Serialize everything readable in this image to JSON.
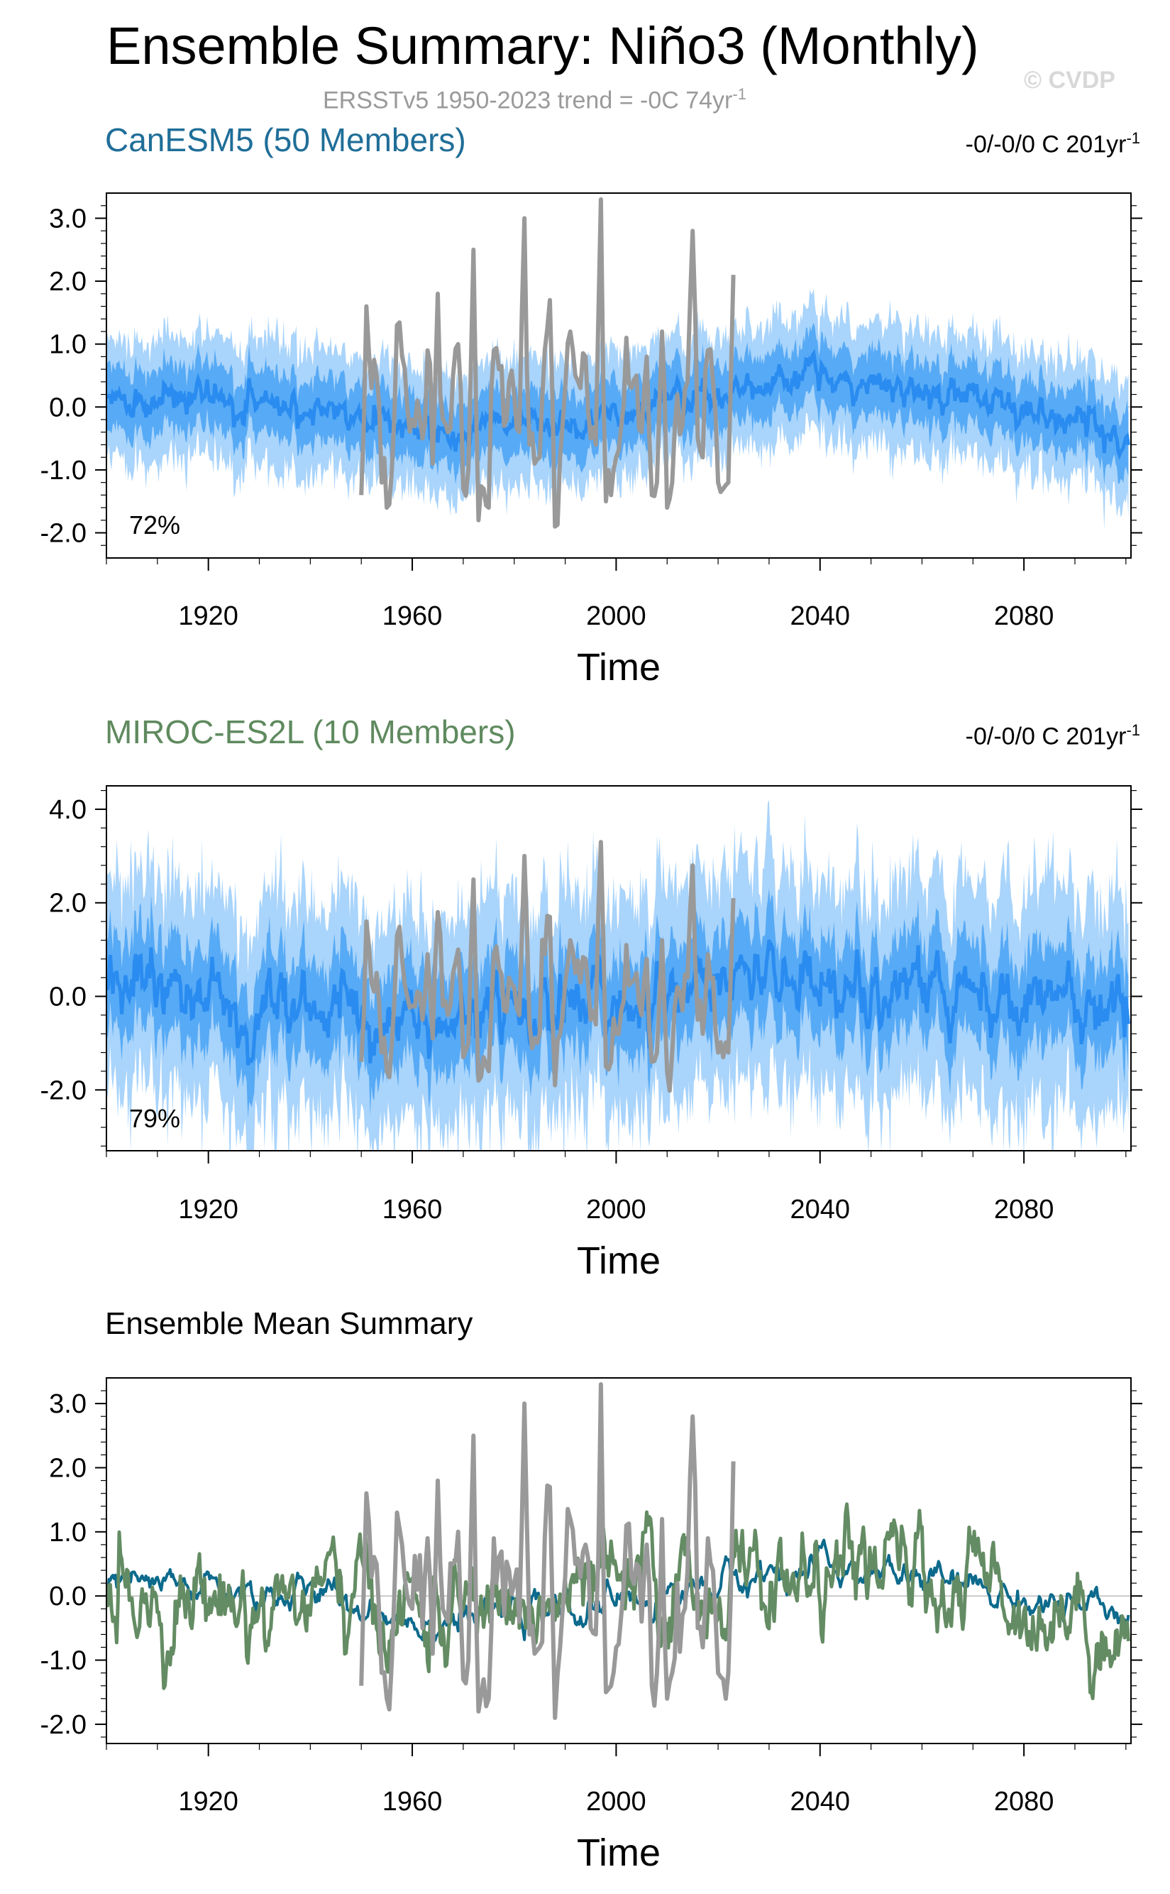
{
  "header": {
    "title": "Ensemble Summary: Niño3 (Monthly)",
    "copyright": "© CVDP",
    "obs_trend_prefix": "ERSSTv5 1950-2023 trend = -0C 74yr",
    "obs_trend_exp": "-1"
  },
  "colors": {
    "obs": "#999999",
    "canesm5_title": "#1f6e98",
    "miroc_title": "#5f8a5f",
    "envelope_outer": "#a9d4fb",
    "envelope_inner": "#57aaf5",
    "ens_mean_line": "#2a8cf0",
    "canesm5_mean": "#0c6a8c",
    "miroc_mean": "#648c64"
  },
  "chart_data": [
    {
      "type": "line",
      "panel": "canesm5",
      "title": "CanESM5 (50 Members)",
      "trend_prefix": "-0/-0/0 C 201yr",
      "trend_exp": "-1",
      "percent_label": "72%",
      "xlabel": "Time",
      "ylabel": "",
      "xlim": [
        1900,
        2101
      ],
      "ylim": [
        -2.4,
        3.4
      ],
      "x_ticks": [
        1920,
        1960,
        2000,
        2040,
        2080
      ],
      "x_tick_labels": [
        "1920",
        "1960",
        "2000",
        "2040",
        "2080"
      ],
      "y_ticks": [
        -2,
        -1,
        0,
        1,
        2,
        3
      ],
      "y_tick_labels": [
        "-2.0",
        "-1.0",
        "0.0",
        "1.0",
        "2.0",
        "3.0"
      ],
      "series": [
        {
          "name": "ensemble-mean",
          "x": [
            1900,
            1910,
            1920,
            1930,
            1940,
            1950,
            1960,
            1970,
            1980,
            1990,
            2000,
            2010,
            2020,
            2030,
            2040,
            2050,
            2060,
            2070,
            2080,
            2090,
            2100
          ],
          "values": [
            0.2,
            0.15,
            0.1,
            0.05,
            0.0,
            -0.2,
            -0.4,
            -0.45,
            -0.3,
            -0.3,
            -0.1,
            0.1,
            0.25,
            0.4,
            0.45,
            0.4,
            0.3,
            0.15,
            -0.05,
            -0.25,
            -0.5
          ]
        },
        {
          "name": "inner-spread-halfwidth",
          "x": [
            1900,
            2100
          ],
          "values": [
            0.5,
            0.5
          ]
        },
        {
          "name": "outer-spread-halfwidth",
          "x": [
            1900,
            2100
          ],
          "values": [
            0.85,
            0.85
          ]
        },
        {
          "name": "ERSSTv5",
          "x": [
            1950,
            1951,
            1952,
            1953,
            1954,
            1955,
            1956,
            1957,
            1958,
            1959,
            1960,
            1961,
            1962,
            1963,
            1964,
            1965,
            1966,
            1967,
            1968,
            1969,
            1970,
            1971,
            1972,
            1973,
            1974,
            1975,
            1976,
            1977,
            1978,
            1979,
            1980,
            1981,
            1982,
            1983,
            1984,
            1985,
            1986,
            1987,
            1988,
            1989,
            1990,
            1991,
            1992,
            1993,
            1994,
            1995,
            1996,
            1997,
            1998,
            1999,
            2000,
            2001,
            2002,
            2003,
            2004,
            2005,
            2006,
            2007,
            2008,
            2009,
            2010,
            2011,
            2012,
            2013,
            2014,
            2015,
            2016,
            2017,
            2018,
            2019,
            2020,
            2021,
            2022,
            2023
          ],
          "values": [
            -1.4,
            1.6,
            0.3,
            0.5,
            -1.2,
            -1.6,
            -1.0,
            1.3,
            0.8,
            0.0,
            -0.2,
            0.1,
            -0.5,
            0.9,
            -0.9,
            1.8,
            -0.2,
            -0.4,
            0.5,
            1.0,
            -1.3,
            -1.0,
            2.5,
            -1.8,
            -1.3,
            -1.6,
            0.9,
            0.6,
            -0.3,
            0.4,
            0.2,
            -0.4,
            3.0,
            -0.6,
            -0.9,
            -0.8,
            0.9,
            1.7,
            -1.9,
            -0.8,
            0.3,
            1.2,
            0.5,
            0.3,
            0.8,
            -0.5,
            -0.6,
            3.3,
            -1.5,
            -1.4,
            -0.8,
            -0.3,
            1.1,
            0.3,
            0.5,
            -0.4,
            0.8,
            -1.4,
            -1.2,
            1.2,
            -1.6,
            -1.2,
            0.2,
            -0.3,
            0.4,
            2.8,
            -0.5,
            -0.8,
            0.9,
            0.4,
            -1.2,
            -1.3,
            -1.2,
            2.1
          ]
        }
      ]
    },
    {
      "type": "line",
      "panel": "miroc-es2l",
      "title": "MIROC-ES2L (10 Members)",
      "trend_prefix": "-0/-0/0 C 201yr",
      "trend_exp": "-1",
      "percent_label": "79%",
      "xlabel": "Time",
      "ylabel": "",
      "xlim": [
        1900,
        2101
      ],
      "ylim": [
        -3.3,
        4.5
      ],
      "x_ticks": [
        1920,
        1960,
        2000,
        2040,
        2080
      ],
      "x_tick_labels": [
        "1920",
        "1960",
        "2000",
        "2040",
        "2080"
      ],
      "y_ticks": [
        -2,
        0,
        2,
        4
      ],
      "y_tick_labels": [
        "-2.0",
        "0.0",
        "2.0",
        "4.0"
      ],
      "series": [
        {
          "name": "ensemble-mean",
          "x": [
            1900,
            1910,
            1920,
            1930,
            1940,
            1950,
            1960,
            1970,
            1980,
            1990,
            2000,
            2010,
            2020,
            2030,
            2040,
            2050,
            2060,
            2070,
            2080,
            2090,
            2100
          ],
          "values": [
            0.1,
            0.0,
            0.0,
            -0.1,
            -0.1,
            -0.2,
            -0.3,
            -0.4,
            -0.3,
            -0.3,
            -0.2,
            -0.1,
            0.1,
            0.2,
            0.2,
            0.15,
            0.1,
            0.05,
            0.0,
            -0.1,
            -0.4
          ]
        },
        {
          "name": "inner-spread-halfwidth",
          "x": [
            1900,
            2100
          ],
          "values": [
            1.0,
            1.0
          ]
        },
        {
          "name": "outer-spread-halfwidth",
          "x": [
            1900,
            2100
          ],
          "values": [
            1.9,
            1.9
          ]
        },
        {
          "name": "ERSSTv5",
          "x": [
            1950,
            1951,
            1952,
            1953,
            1954,
            1955,
            1956,
            1957,
            1958,
            1959,
            1960,
            1961,
            1962,
            1963,
            1964,
            1965,
            1966,
            1967,
            1968,
            1969,
            1970,
            1971,
            1972,
            1973,
            1974,
            1975,
            1976,
            1977,
            1978,
            1979,
            1980,
            1981,
            1982,
            1983,
            1984,
            1985,
            1986,
            1987,
            1988,
            1989,
            1990,
            1991,
            1992,
            1993,
            1994,
            1995,
            1996,
            1997,
            1998,
            1999,
            2000,
            2001,
            2002,
            2003,
            2004,
            2005,
            2006,
            2007,
            2008,
            2009,
            2010,
            2011,
            2012,
            2013,
            2014,
            2015,
            2016,
            2017,
            2018,
            2019,
            2020,
            2021,
            2022,
            2023
          ],
          "values": [
            -1.4,
            1.6,
            0.3,
            0.5,
            -1.2,
            -1.6,
            -1.0,
            1.3,
            0.8,
            0.0,
            -0.2,
            0.1,
            -0.5,
            0.9,
            -0.9,
            1.8,
            -0.2,
            -0.4,
            0.5,
            1.0,
            -1.3,
            -1.0,
            2.5,
            -1.8,
            -1.3,
            -1.6,
            0.9,
            0.6,
            -0.3,
            0.4,
            0.2,
            -0.4,
            3.0,
            -0.6,
            -0.9,
            -0.8,
            0.9,
            1.7,
            -1.9,
            -0.8,
            0.3,
            1.2,
            0.5,
            0.3,
            0.8,
            -0.5,
            -0.6,
            3.3,
            -1.5,
            -1.4,
            -0.8,
            -0.3,
            1.1,
            0.3,
            0.5,
            -0.4,
            0.8,
            -1.4,
            -1.2,
            1.2,
            -1.6,
            -1.2,
            0.2,
            -0.3,
            0.4,
            2.8,
            -0.5,
            -0.8,
            0.9,
            0.4,
            -1.2,
            -1.3,
            -1.2,
            2.1
          ]
        }
      ]
    },
    {
      "type": "line",
      "panel": "ensemble-mean-summary",
      "title": "Ensemble Mean Summary",
      "xlabel": "Time",
      "ylabel": "",
      "xlim": [
        1900,
        2101
      ],
      "ylim": [
        -2.3,
        3.4
      ],
      "x_ticks": [
        1920,
        1960,
        2000,
        2040,
        2080
      ],
      "x_tick_labels": [
        "1920",
        "1960",
        "2000",
        "2040",
        "2080"
      ],
      "y_ticks": [
        -2,
        -1,
        0,
        1,
        2,
        3
      ],
      "y_tick_labels": [
        "-2.0",
        "-1.0",
        "0.0",
        "1.0",
        "2.0",
        "3.0"
      ],
      "series": [
        {
          "name": "CanESM5",
          "x": [
            1900,
            1910,
            1920,
            1930,
            1940,
            1950,
            1960,
            1970,
            1980,
            1990,
            2000,
            2010,
            2020,
            2030,
            2040,
            2050,
            2060,
            2070,
            2080,
            2090,
            2100
          ],
          "values": [
            0.15,
            0.1,
            0.1,
            0.05,
            0.0,
            -0.15,
            -0.3,
            -0.35,
            -0.25,
            -0.25,
            -0.1,
            0.05,
            0.2,
            0.35,
            0.4,
            0.35,
            0.25,
            0.1,
            -0.05,
            -0.2,
            -0.45
          ]
        },
        {
          "name": "MIROC-ES2L",
          "x": [
            1900,
            1910,
            1920,
            1930,
            1940,
            1950,
            1960,
            1970,
            1980,
            1990,
            2000,
            2010,
            2020,
            2030,
            2040,
            2050,
            2060,
            2070,
            2080,
            2090,
            2100
          ],
          "values": [
            0.3,
            0.05,
            0.0,
            -0.1,
            0.0,
            -0.2,
            -0.3,
            -0.3,
            -0.2,
            -0.2,
            -0.1,
            0.1,
            0.2,
            0.2,
            0.3,
            0.3,
            0.3,
            0.2,
            0.0,
            -0.2,
            -0.5
          ]
        },
        {
          "name": "ERSSTv5",
          "x": [
            1950,
            1951,
            1952,
            1953,
            1954,
            1955,
            1956,
            1957,
            1958,
            1959,
            1960,
            1961,
            1962,
            1963,
            1964,
            1965,
            1966,
            1967,
            1968,
            1969,
            1970,
            1971,
            1972,
            1973,
            1974,
            1975,
            1976,
            1977,
            1978,
            1979,
            1980,
            1981,
            1982,
            1983,
            1984,
            1985,
            1986,
            1987,
            1988,
            1989,
            1990,
            1991,
            1992,
            1993,
            1994,
            1995,
            1996,
            1997,
            1998,
            1999,
            2000,
            2001,
            2002,
            2003,
            2004,
            2005,
            2006,
            2007,
            2008,
            2009,
            2010,
            2011,
            2012,
            2013,
            2014,
            2015,
            2016,
            2017,
            2018,
            2019,
            2020,
            2021,
            2022,
            2023
          ],
          "values": [
            -1.4,
            1.6,
            0.3,
            0.5,
            -1.2,
            -1.6,
            -1.0,
            1.3,
            0.8,
            0.0,
            -0.2,
            0.1,
            -0.5,
            0.9,
            -0.9,
            1.8,
            -0.2,
            -0.4,
            0.5,
            1.0,
            -1.3,
            -1.0,
            2.5,
            -1.8,
            -1.3,
            -1.6,
            0.9,
            0.6,
            -0.3,
            0.4,
            0.2,
            -0.4,
            3.0,
            -0.6,
            -0.9,
            -0.8,
            0.9,
            1.7,
            -1.9,
            -0.8,
            0.3,
            1.2,
            0.5,
            0.3,
            0.8,
            -0.5,
            -0.6,
            3.3,
            -1.5,
            -1.4,
            -0.8,
            -0.3,
            1.1,
            0.3,
            0.5,
            -0.4,
            0.8,
            -1.4,
            -1.2,
            1.2,
            -1.6,
            -1.2,
            0.2,
            -0.3,
            0.4,
            2.8,
            -0.5,
            -0.8,
            0.9,
            0.4,
            -1.2,
            -1.3,
            -1.2,
            2.1
          ]
        }
      ]
    }
  ]
}
